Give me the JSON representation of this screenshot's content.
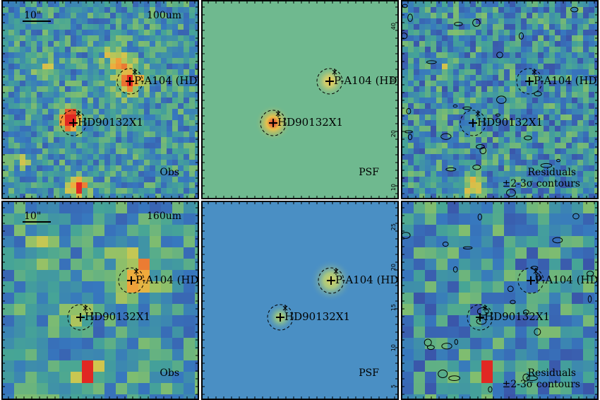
{
  "scale_bar": "10\"",
  "rows": [
    {
      "band": "100um",
      "panels": [
        {
          "label": "Obs",
          "type": "obs"
        },
        {
          "label": "PSF",
          "type": "psf"
        },
        {
          "label": "Residuals",
          "label2": "±2-3σ contours",
          "type": "res"
        }
      ],
      "axis_ticks": [
        "40",
        "30",
        "20",
        "10"
      ]
    },
    {
      "band": "160um",
      "panels": [
        {
          "label": "Obs",
          "type": "obs"
        },
        {
          "label": "PSF",
          "type": "psf"
        },
        {
          "label": "Residuals",
          "label2": "±2-3σ contours",
          "type": "res"
        }
      ],
      "axis_ticks": [
        "25",
        "20",
        "15",
        "10",
        "5"
      ]
    }
  ],
  "sources": [
    {
      "name": "P-A104 (HD"
    },
    {
      "name": "HD90132X1"
    }
  ],
  "colors": {
    "frame": "#000000",
    "psf_bg_100": "#6fb98f",
    "psf_bg_160": "#4a8fc4",
    "peak": "#e0302a"
  }
}
